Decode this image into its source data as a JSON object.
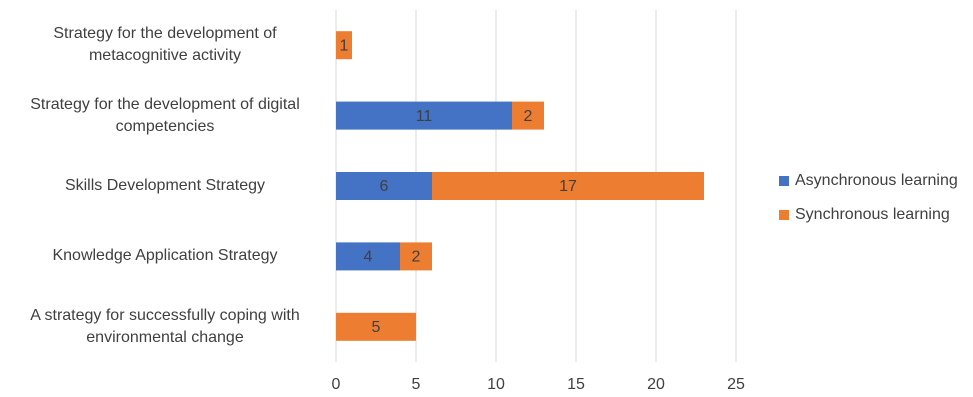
{
  "chart_data": {
    "type": "stacked-barh",
    "categories": [
      "Strategy for the development of metacognitive activity",
      "Strategy for the development of digital competencies",
      "Skills Development Strategy",
      "Knowledge Application Strategy",
      "A strategy for successfully coping with environmental change"
    ],
    "series": [
      {
        "name": "Asynchronous learning",
        "color": "#4472c4",
        "values": [
          0,
          11,
          6,
          4,
          0
        ]
      },
      {
        "name": "Synchronous learning",
        "color": "#ed7d31",
        "values": [
          1,
          2,
          17,
          2,
          5
        ]
      }
    ],
    "xlim": [
      0,
      25
    ],
    "xticks": [
      0,
      5,
      10,
      15,
      20,
      25
    ],
    "grid": true,
    "legend": "right"
  }
}
